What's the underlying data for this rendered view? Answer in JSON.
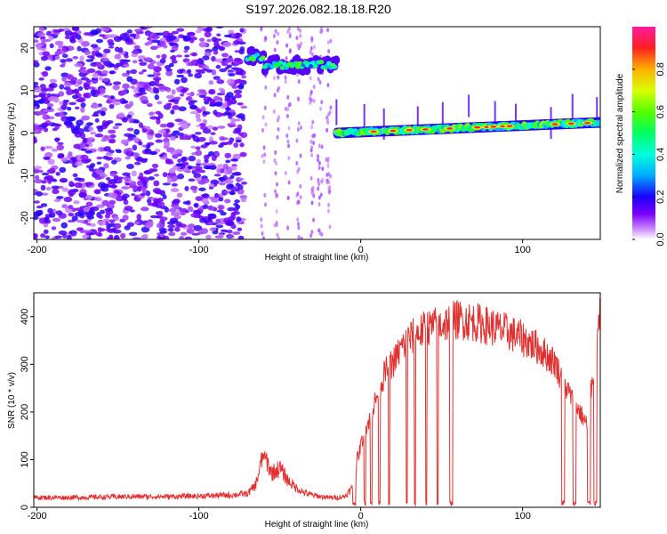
{
  "title": "S197.2026.082.18.18.R20",
  "chart_data": [
    {
      "type": "heatmap",
      "xlabel": "Height of straight line (km)",
      "ylabel": "Frequency (Hz)",
      "xlim": [
        -202,
        148
      ],
      "ylim": [
        -25,
        25
      ],
      "xticks": [
        -200,
        -100,
        0,
        100
      ],
      "yticks": [
        20,
        10,
        0,
        -10,
        -20
      ],
      "colorbar": {
        "label": "Normalized spectral amplitude",
        "range": [
          0.0,
          1.0
        ],
        "ticks": [
          0.0,
          0.2,
          0.4,
          0.6,
          0.8
        ]
      },
      "features": [
        {
          "name": "scattered noise",
          "x_range": [
            -202,
            -72
          ],
          "y_range": [
            -25,
            25
          ],
          "amplitude": [
            0.05,
            0.2
          ]
        },
        {
          "name": "upper signal band",
          "x_range": [
            -70,
            -15
          ],
          "freq_hz": 16,
          "amplitude": [
            0.2,
            0.6
          ]
        },
        {
          "name": "main signal band",
          "x_range": [
            -15,
            148
          ],
          "freq_hz": [
            0,
            2.5
          ],
          "amplitude": [
            0.3,
            1.0
          ]
        }
      ]
    },
    {
      "type": "line",
      "xlabel": "Height of straight line (km)",
      "ylabel": "SNR (10 * v/v)",
      "xlim": [
        -202,
        148
      ],
      "ylim": [
        0,
        450
      ],
      "xticks": [
        -200,
        -100,
        0,
        100
      ],
      "yticks": [
        0,
        100,
        200,
        300,
        400
      ],
      "series": [
        {
          "name": "SNR",
          "color": "#e03030",
          "x": [
            -202,
            -180,
            -160,
            -140,
            -120,
            -100,
            -80,
            -70,
            -65,
            -60,
            -55,
            -50,
            -45,
            -40,
            -35,
            -30,
            -25,
            -20,
            -15,
            -10,
            -5,
            0,
            5,
            10,
            15,
            20,
            25,
            30,
            40,
            50,
            60,
            70,
            80,
            90,
            100,
            110,
            120,
            125,
            130,
            135,
            140,
            145,
            148
          ],
          "values": [
            20,
            20,
            21,
            22,
            22,
            23,
            25,
            28,
            45,
            110,
            70,
            80,
            55,
            40,
            30,
            25,
            22,
            20,
            20,
            22,
            40,
            130,
            180,
            230,
            280,
            300,
            330,
            350,
            370,
            380,
            390,
            385,
            375,
            365,
            350,
            330,
            300,
            260,
            230,
            200,
            170,
            330,
            400
          ]
        }
      ]
    }
  ]
}
